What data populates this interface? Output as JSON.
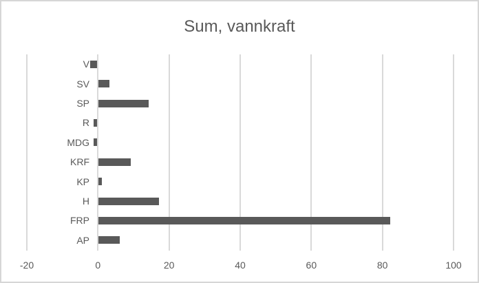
{
  "chart_data": {
    "type": "bar",
    "orientation": "horizontal",
    "title": "Sum, vannkraft",
    "categories": [
      "V",
      "SV",
      "SP",
      "R",
      "MDG",
      "KRF",
      "KP",
      "H",
      "FRP",
      "AP"
    ],
    "values": [
      -2,
      3,
      14,
      -1,
      -1,
      9,
      1,
      17,
      82,
      6
    ],
    "xlabel": "",
    "ylabel": "",
    "xlim": [
      -20,
      100
    ],
    "xticks": [
      -20,
      0,
      20,
      40,
      60,
      80,
      100
    ],
    "grid": "vertical-only",
    "legend": "none",
    "bar_color": "#595959",
    "gridline_color": "#d9d9d9",
    "text_color": "#595959",
    "border_color": "#d6d6d6",
    "background_color": "#ffffff"
  }
}
